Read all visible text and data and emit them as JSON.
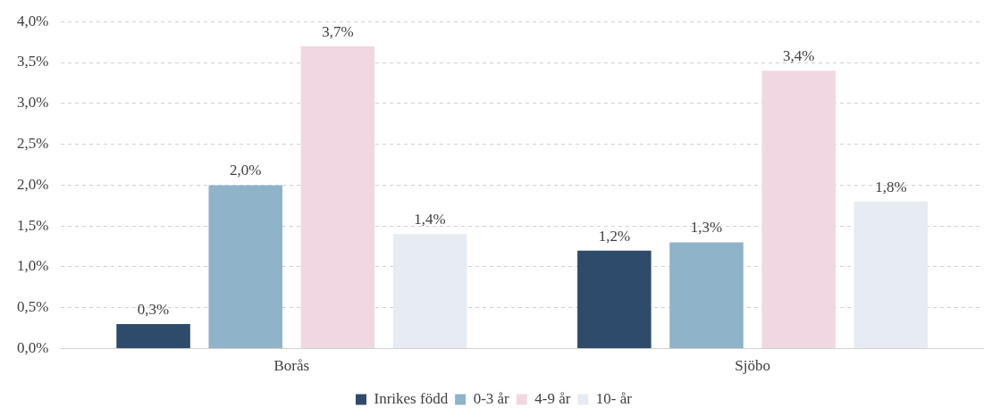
{
  "chart_data": {
    "type": "bar",
    "categories": [
      "Borås",
      "Sjöbo"
    ],
    "series": [
      {
        "name": "Inrikes född",
        "color": "#2f4b6c",
        "values": [
          0.3,
          1.2
        ],
        "value_labels": [
          "0,3%",
          "1,2%"
        ]
      },
      {
        "name": "0-3 år",
        "color": "#8fb3c9",
        "values": [
          2.0,
          1.3
        ],
        "value_labels": [
          "2,0%",
          "1,3%"
        ]
      },
      {
        "name": "4-9 år",
        "color": "#f1d7e1",
        "values": [
          3.7,
          3.4
        ],
        "value_labels": [
          "3,7%",
          "3,4%"
        ]
      },
      {
        "name": "10- år",
        "color": "#e6ecf1",
        "values": [
          1.4,
          1.8
        ],
        "value_labels": [
          "1,4%",
          "1,8%"
        ]
      }
    ],
    "ylim": [
      0,
      4
    ],
    "yticks": [
      {
        "value": 0,
        "label": "0,0%"
      },
      {
        "value": 0.5,
        "label": "0,5%"
      },
      {
        "value": 1,
        "label": "1,0%"
      },
      {
        "value": 1.5,
        "label": "1,5%"
      },
      {
        "value": 2,
        "label": "2,0%"
      },
      {
        "value": 2.5,
        "label": "2,5%"
      },
      {
        "value": 3,
        "label": "3,0%"
      },
      {
        "value": 3.5,
        "label": "3,5%"
      },
      {
        "value": 4,
        "label": "4,0%"
      }
    ],
    "grid": "y",
    "legend": "bottom"
  }
}
